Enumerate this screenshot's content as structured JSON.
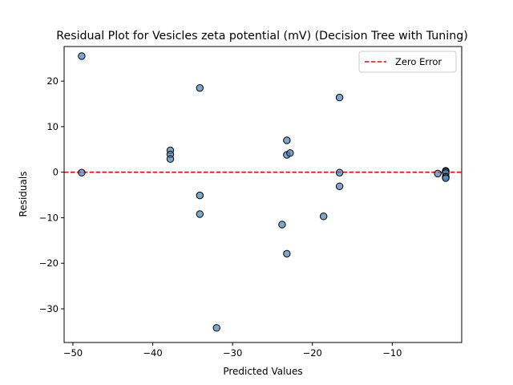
{
  "chart_data": {
    "type": "scatter",
    "title": "Residual Plot for Vesicles zeta potential (mV) (Decision Tree with Tuning)",
    "xlabel": "Predicted Values",
    "ylabel": "Residuals",
    "xlim": [
      -51.1,
      -1.3
    ],
    "ylim": [
      -37.4,
      27.6
    ],
    "xticks": [
      -50,
      -40,
      -30,
      -20,
      -10
    ],
    "xtick_labels": [
      "−50",
      "−40",
      "−30",
      "−20",
      "−10"
    ],
    "yticks": [
      -30,
      -20,
      -10,
      0,
      10,
      20
    ],
    "ytick_labels": [
      "−30",
      "−20",
      "−10",
      "0",
      "10",
      "20"
    ],
    "reference_line": {
      "y": 0,
      "label": "Zero Error",
      "color": "#ff0000",
      "style": "dashed"
    },
    "legend": {
      "position": "top-right",
      "entries": [
        "Zero Error"
      ]
    },
    "marker_color": "#4682b4",
    "grid": false,
    "points": [
      {
        "x": -48.9,
        "y": 25.5
      },
      {
        "x": -48.9,
        "y": -0.1
      },
      {
        "x": -37.8,
        "y": 4.8
      },
      {
        "x": -37.8,
        "y": 3.9
      },
      {
        "x": -37.8,
        "y": 2.9
      },
      {
        "x": -34.1,
        "y": 18.5
      },
      {
        "x": -34.1,
        "y": -5.1
      },
      {
        "x": -34.1,
        "y": -9.2
      },
      {
        "x": -32.0,
        "y": -34.2
      },
      {
        "x": -23.8,
        "y": -11.5
      },
      {
        "x": -23.2,
        "y": 7.0
      },
      {
        "x": -23.2,
        "y": 3.8
      },
      {
        "x": -22.8,
        "y": 4.2
      },
      {
        "x": -23.2,
        "y": -17.9
      },
      {
        "x": -18.6,
        "y": -9.7
      },
      {
        "x": -16.6,
        "y": 16.4
      },
      {
        "x": -16.6,
        "y": -0.1
      },
      {
        "x": -16.6,
        "y": -3.1
      },
      {
        "x": -4.3,
        "y": -0.3
      },
      {
        "x": -3.3,
        "y": 0.3
      },
      {
        "x": -3.3,
        "y": 0.1
      },
      {
        "x": -3.3,
        "y": -0.2
      },
      {
        "x": -3.3,
        "y": -1.0
      },
      {
        "x": -3.3,
        "y": -1.3
      }
    ]
  }
}
